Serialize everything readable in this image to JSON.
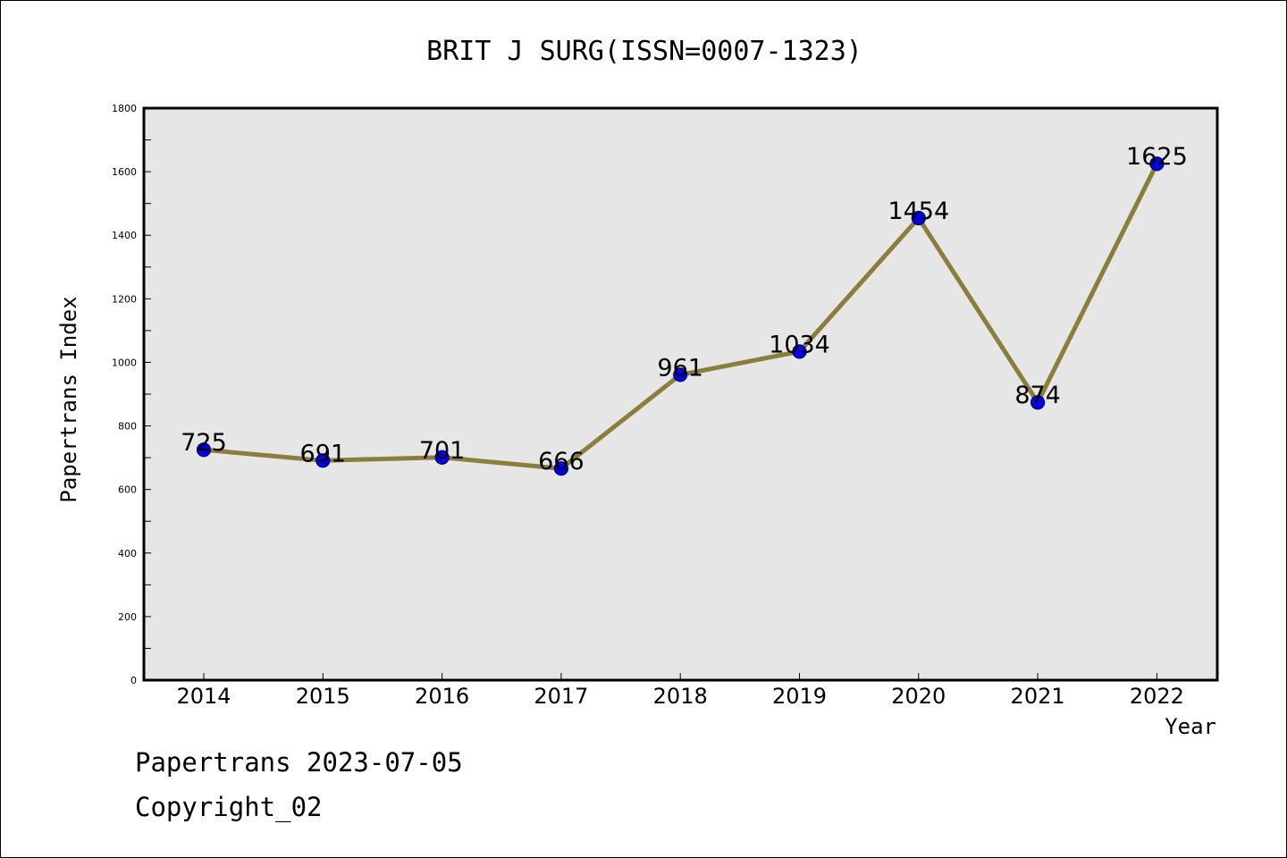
{
  "chart_data": {
    "type": "line",
    "title": "BRIT J SURG(ISSN=0007-1323)",
    "xlabel": "Year",
    "ylabel": "Papertrans Index",
    "categories": [
      "2014",
      "2015",
      "2016",
      "2017",
      "2018",
      "2019",
      "2020",
      "2021",
      "2022"
    ],
    "series": [
      {
        "values": [
          725,
          691,
          701,
          666,
          961,
          1034,
          1454,
          874,
          1625
        ]
      }
    ],
    "ylim": [
      0,
      1800
    ],
    "yticks": [
      0,
      200,
      400,
      600,
      800,
      1000,
      1200,
      1400,
      1600,
      1800
    ],
    "grid": false,
    "data_labels": true,
    "colors": {
      "line": "#8b7d3a",
      "marker": "#0000ee",
      "marker_edge": "#00005a",
      "plot_bg": "#e6e6e6"
    }
  },
  "footer": {
    "line1": "Papertrans 2023-07-05",
    "line2": "Copyright_02"
  }
}
